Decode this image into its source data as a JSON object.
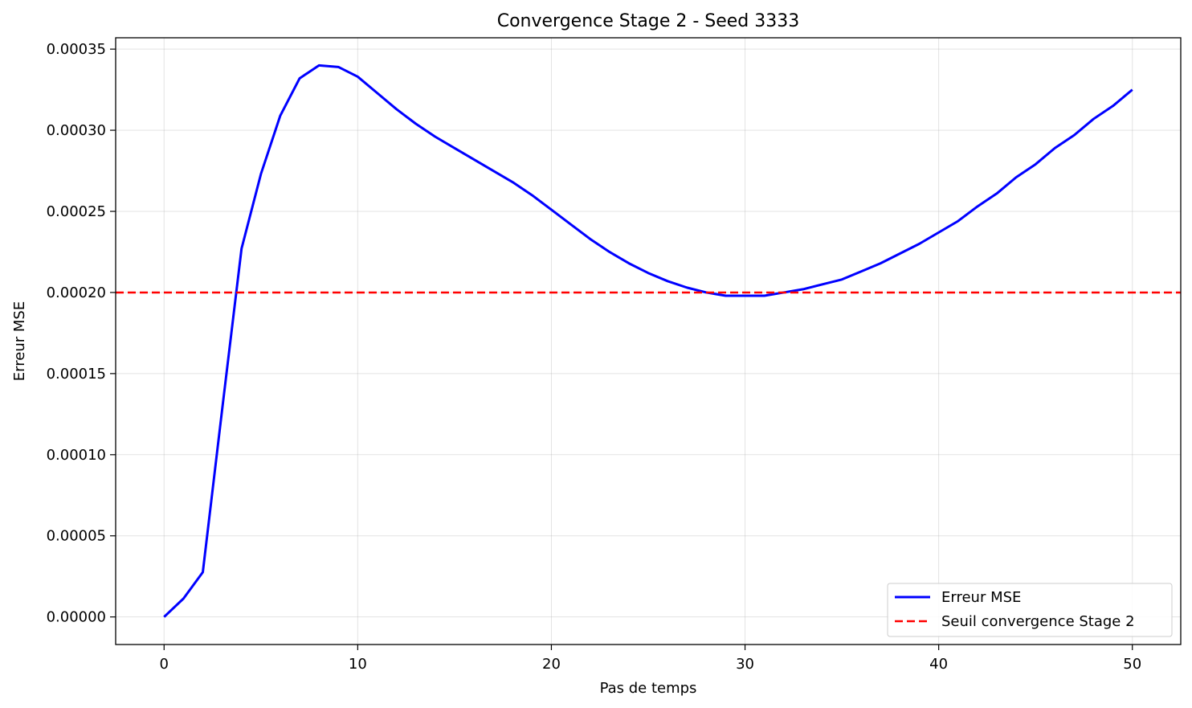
{
  "chart_data": {
    "type": "line",
    "title": "Convergence Stage 2 - Seed 3333",
    "xlabel": "Pas de temps",
    "ylabel": "Erreur MSE",
    "xlim": [
      -2.5,
      52.5
    ],
    "ylim": [
      -1.7e-05,
      0.000357
    ],
    "xticks": [
      0,
      10,
      20,
      30,
      40,
      50
    ],
    "xtick_labels": [
      "0",
      "10",
      "20",
      "30",
      "40",
      "50"
    ],
    "yticks": [
      0,
      5e-05,
      0.0001,
      0.00015,
      0.0002,
      0.00025,
      0.0003,
      0.00035
    ],
    "ytick_labels": [
      "0.00000",
      "0.00005",
      "0.00010",
      "0.00015",
      "0.00020",
      "0.00025",
      "0.00030",
      "0.00035"
    ],
    "grid": true,
    "legend_position": "lower-right",
    "series": [
      {
        "name": "Erreur MSE",
        "color": "#0000ff",
        "style": "solid",
        "x": [
          0,
          1,
          2,
          3,
          4,
          5,
          6,
          7,
          8,
          9,
          10,
          11,
          12,
          13,
          14,
          15,
          16,
          17,
          18,
          19,
          20,
          21,
          22,
          23,
          24,
          25,
          26,
          27,
          28,
          29,
          30,
          31,
          32,
          33,
          34,
          35,
          36,
          37,
          38,
          39,
          40,
          41,
          42,
          43,
          44,
          45,
          46,
          47,
          48,
          49,
          50
        ],
        "y": [
          0.0,
          1.13e-05,
          2.76e-05,
          0.000128,
          0.000227,
          0.000273,
          0.000309,
          0.000332,
          0.00034,
          0.000339,
          0.000333,
          0.000323,
          0.000313,
          0.000304,
          0.000296,
          0.000289,
          0.000282,
          0.000275,
          0.000268,
          0.00026,
          0.000251,
          0.000242,
          0.000233,
          0.000225,
          0.000218,
          0.000212,
          0.000207,
          0.000203,
          0.0002,
          0.000198,
          0.000198,
          0.000198,
          0.0002,
          0.000202,
          0.000205,
          0.000208,
          0.000213,
          0.000218,
          0.000224,
          0.00023,
          0.000237,
          0.000244,
          0.000253,
          0.000261,
          0.000271,
          0.000279,
          0.000289,
          0.000297,
          0.000307,
          0.000315,
          0.000325
        ]
      },
      {
        "name": "Seuil convergence Stage 2",
        "color": "#ff0000",
        "style": "dashed",
        "y_constant": 0.0002
      }
    ]
  }
}
